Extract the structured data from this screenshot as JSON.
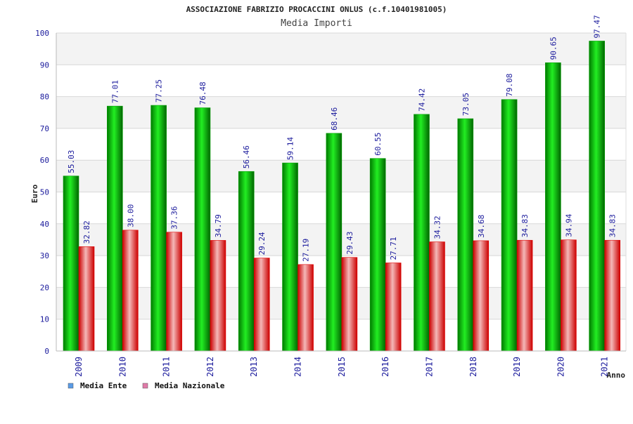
{
  "chart_data": {
    "type": "bar",
    "title": "ASSOCIAZIONE FABRIZIO PROCACCINI ONLUS (c.f.10401981005)",
    "subtitle": "Media Importi",
    "xlabel": "Anno",
    "ylabel": "Euro",
    "ylim": [
      0,
      100
    ],
    "yticks": [
      0,
      10,
      20,
      30,
      40,
      50,
      60,
      70,
      80,
      90,
      100
    ],
    "categories": [
      "2009",
      "2010",
      "2011",
      "2012",
      "2013",
      "2014",
      "2015",
      "2016",
      "2017",
      "2018",
      "2019",
      "2020",
      "2021"
    ],
    "series": [
      {
        "name": "Media Ente",
        "color": "#00a000",
        "legend_color": "#5a9be6",
        "values": [
          55.03,
          77.01,
          77.25,
          76.48,
          56.46,
          59.14,
          68.46,
          60.55,
          74.42,
          73.05,
          79.08,
          90.65,
          97.47
        ]
      },
      {
        "name": "Media Nazionale",
        "color": "#e00000",
        "legend_color": "#e07aa8",
        "values": [
          32.82,
          38.0,
          37.36,
          34.79,
          29.24,
          27.19,
          29.43,
          27.71,
          34.32,
          34.68,
          34.83,
          34.94,
          34.83
        ]
      }
    ],
    "grid": true,
    "legend_position": "bottom-left"
  }
}
